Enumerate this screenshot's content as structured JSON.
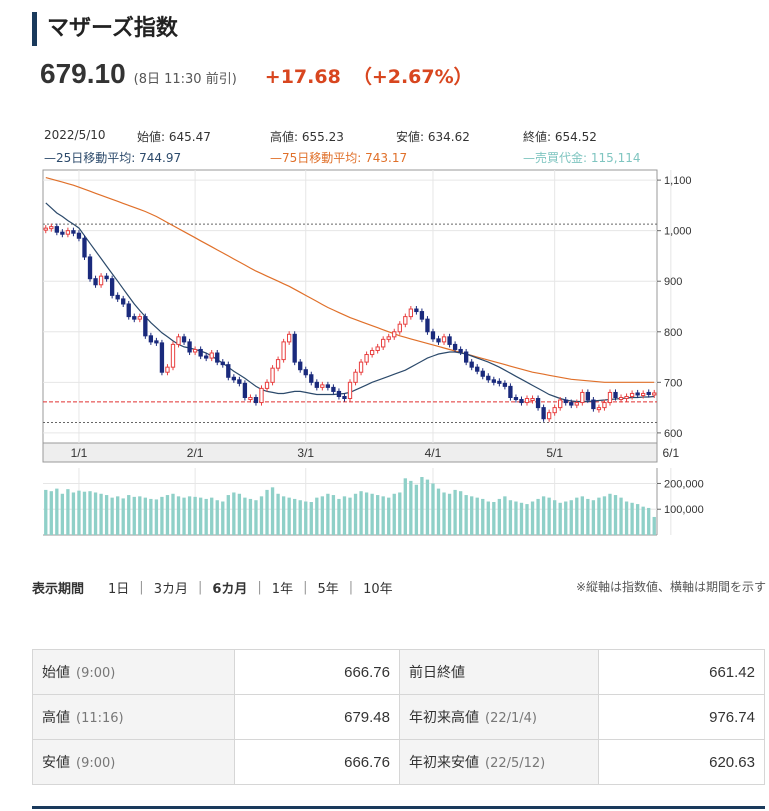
{
  "header": {
    "title": "マザーズ指数"
  },
  "quote": {
    "price": "679.10",
    "time": "(8日 11:30 前引)",
    "change": "+17.68",
    "change_pct": "（+2.67%）"
  },
  "ohlc_info": {
    "date": "2022/5/10",
    "open": "始値: 645.47",
    "high": "高値: 655.23",
    "low": "安値: 634.62",
    "close": "終値: 654.52",
    "ma25": "—25日移動平均: 744.97",
    "ma75": "—75日移動平均: 743.17",
    "volume": "—売買代金: 115,114"
  },
  "chart_data": {
    "type": "candlestick",
    "price_axis": {
      "ticks": [
        "1,100",
        "1,000",
        "900",
        "800",
        "700",
        "600"
      ],
      "values": [
        1100,
        1000,
        900,
        800,
        700,
        600
      ],
      "ylim": [
        580,
        1120
      ]
    },
    "volume_axis": {
      "ticks": [
        "200,000",
        "100,000"
      ],
      "values": [
        200000,
        100000
      ],
      "ylim": [
        0,
        260000
      ]
    },
    "x_tick_labels": [
      "1/1",
      "2/1",
      "3/1",
      "4/1",
      "5/1",
      "6/1"
    ],
    "x_tick_index": [
      6,
      27,
      47,
      70,
      92,
      113
    ],
    "reference_lines": [
      {
        "value": 1013,
        "color": "#666666",
        "style": "dotted"
      },
      {
        "value": 661.42,
        "color": "#e03030",
        "style": "dashed"
      },
      {
        "value": 620.63,
        "color": "#666666",
        "style": "dotted"
      }
    ],
    "candles_close": [
      1005,
      1008,
      997,
      993,
      1000,
      995,
      985,
      948,
      905,
      893,
      910,
      905,
      872,
      865,
      855,
      830,
      825,
      830,
      792,
      780,
      778,
      720,
      730,
      775,
      790,
      780,
      760,
      765,
      752,
      748,
      758,
      740,
      735,
      710,
      705,
      698,
      670,
      670,
      660,
      688,
      700,
      728,
      745,
      780,
      795,
      740,
      725,
      715,
      700,
      690,
      695,
      690,
      682,
      672,
      668,
      700,
      720,
      740,
      755,
      763,
      770,
      785,
      790,
      800,
      815,
      830,
      845,
      840,
      825,
      800,
      786,
      780,
      790,
      775,
      765,
      760,
      740,
      730,
      722,
      712,
      705,
      700,
      698,
      692,
      670,
      666,
      660,
      668,
      668,
      650,
      628,
      640,
      650,
      665,
      660,
      655,
      660,
      680,
      665,
      648,
      650,
      660,
      680,
      670,
      670,
      672,
      678,
      675,
      678,
      676,
      679
    ],
    "candles_up": [
      true,
      true,
      false,
      false,
      true,
      false,
      false,
      false,
      false,
      false,
      true,
      false,
      false,
      false,
      false,
      false,
      false,
      true,
      false,
      false,
      false,
      false,
      true,
      true,
      true,
      false,
      false,
      true,
      false,
      false,
      true,
      false,
      false,
      false,
      false,
      false,
      false,
      true,
      false,
      true,
      true,
      true,
      true,
      true,
      true,
      false,
      false,
      false,
      false,
      false,
      true,
      false,
      false,
      false,
      false,
      true,
      true,
      true,
      true,
      true,
      true,
      true,
      true,
      true,
      true,
      true,
      true,
      false,
      false,
      false,
      false,
      false,
      true,
      false,
      false,
      false,
      false,
      false,
      false,
      false,
      false,
      false,
      false,
      false,
      false,
      false,
      false,
      true,
      true,
      false,
      false,
      true,
      true,
      true,
      false,
      false,
      true,
      true,
      false,
      false,
      true,
      true,
      true,
      false,
      true,
      true,
      true,
      false,
      true,
      false,
      true
    ],
    "ma25": [
      1055,
      1045,
      1035,
      1028,
      1020,
      1013,
      1005,
      990,
      975,
      960,
      945,
      930,
      915,
      900,
      885,
      870,
      855,
      842,
      830,
      818,
      808,
      798,
      790,
      782,
      775,
      770,
      768,
      765,
      762,
      758,
      752,
      745,
      738,
      730,
      722,
      715,
      708,
      700,
      692,
      686,
      682,
      680,
      678,
      678,
      680,
      682,
      682,
      680,
      678,
      676,
      676,
      676,
      676,
      677,
      678,
      680,
      685,
      690,
      695,
      700,
      704,
      708,
      712,
      716,
      720,
      724,
      730,
      736,
      742,
      748,
      752,
      756,
      758,
      760,
      760,
      758,
      756,
      752,
      748,
      744,
      740,
      735,
      730,
      724,
      718,
      712,
      706,
      700,
      694,
      688,
      682,
      676,
      672,
      668,
      665,
      663,
      662,
      662,
      662,
      663,
      664,
      665,
      666,
      667,
      668,
      669,
      670,
      670,
      671,
      671,
      672
    ],
    "ma75": [
      1105,
      1102,
      1099,
      1096,
      1093,
      1090,
      1086,
      1082,
      1078,
      1074,
      1070,
      1066,
      1062,
      1058,
      1054,
      1050,
      1046,
      1042,
      1038,
      1033,
      1028,
      1022,
      1016,
      1010,
      1004,
      998,
      992,
      986,
      980,
      974,
      968,
      962,
      956,
      950,
      944,
      938,
      932,
      926,
      920,
      915,
      910,
      905,
      900,
      895,
      890,
      884,
      878,
      872,
      866,
      860,
      854,
      848,
      843,
      838,
      833,
      828,
      824,
      820,
      816,
      812,
      808,
      804,
      800,
      796,
      792,
      789,
      786,
      783,
      780,
      777,
      774,
      771,
      768,
      765,
      762,
      759,
      756,
      753,
      750,
      747,
      744,
      741,
      738,
      735,
      732,
      729,
      726,
      723,
      720,
      718,
      716,
      714,
      712,
      710,
      708,
      706,
      705,
      704,
      703,
      702,
      701,
      700,
      700,
      700,
      700,
      700,
      700,
      700,
      700,
      700,
      700
    ],
    "volume": [
      175,
      170,
      180,
      160,
      178,
      165,
      172,
      168,
      170,
      165,
      160,
      155,
      145,
      150,
      142,
      155,
      148,
      150,
      145,
      140,
      138,
      148,
      155,
      160,
      150,
      145,
      150,
      148,
      145,
      140,
      145,
      135,
      130,
      155,
      165,
      160,
      145,
      140,
      135,
      150,
      175,
      185,
      160,
      150,
      145,
      140,
      135,
      130,
      128,
      145,
      150,
      160,
      155,
      140,
      150,
      145,
      160,
      170,
      165,
      160,
      155,
      150,
      145,
      160,
      165,
      220,
      210,
      195,
      225,
      215,
      200,
      180,
      165,
      160,
      175,
      170,
      155,
      150,
      145,
      140,
      130,
      128,
      140,
      150,
      135,
      130,
      125,
      120,
      130,
      140,
      150,
      145,
      135,
      125,
      130,
      135,
      145,
      150,
      140,
      135,
      145,
      150,
      160,
      155,
      145,
      130,
      125,
      120,
      110,
      105,
      70
    ]
  },
  "periods": {
    "label": "表示期間",
    "options": [
      "1日",
      "3カ月",
      "6カ月",
      "1年",
      "5年",
      "10年"
    ],
    "active": "6カ月",
    "note": "※縦軸は指数値、横軸は期間を示す"
  },
  "stats": {
    "rows": [
      {
        "k1": "始値",
        "k1sub": "(9:00)",
        "v1": "666.76",
        "k2": "前日終値",
        "k2sub": "",
        "v2": "661.42"
      },
      {
        "k1": "高値",
        "k1sub": "(11:16)",
        "v1": "679.48",
        "k2": "年初来高値",
        "k2sub": "(22/1/4)",
        "v2": "976.74"
      },
      {
        "k1": "安値",
        "k1sub": "(9:00)",
        "v1": "666.76",
        "k2": "年初来安値",
        "k2sub": "(22/5/12)",
        "v2": "620.63"
      }
    ]
  },
  "colors": {
    "up": "#e84040",
    "down": "#1a2a7c",
    "ma25": "#2c4a6b",
    "ma75": "#e0702a",
    "volume": "#8fd0c8",
    "accent": "#d8461f"
  }
}
